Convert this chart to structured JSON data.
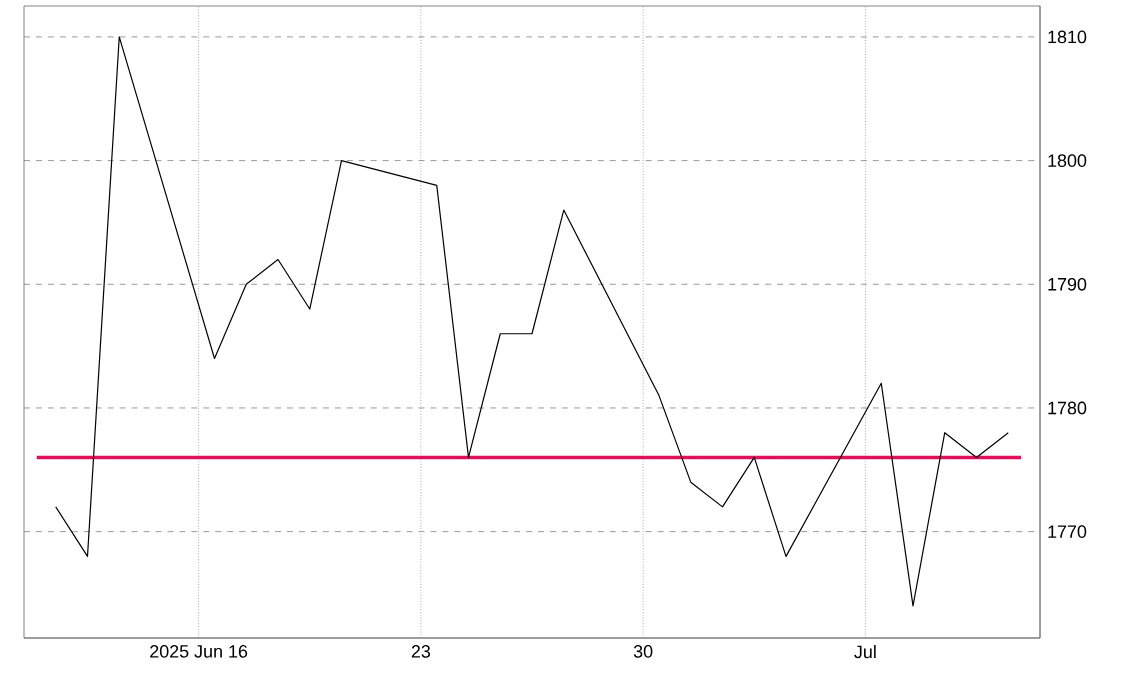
{
  "chart_data": {
    "type": "line",
    "x": [
      "2025-06-11T12:00",
      "2025-06-12T12:00",
      "2025-06-13T12:00",
      "2025-06-16T12:00",
      "2025-06-17T12:00",
      "2025-06-18T12:00",
      "2025-06-19T12:00",
      "2025-06-20T12:00",
      "2025-06-23T12:00",
      "2025-06-24T12:00",
      "2025-06-25T12:00",
      "2025-06-26T12:00",
      "2025-06-27T12:00",
      "2025-06-30T12:00",
      "2025-07-01T12:00",
      "2025-07-02T12:00",
      "2025-07-03T12:00",
      "2025-07-04T12:00",
      "2025-07-07T12:00",
      "2025-07-08T12:00",
      "2025-07-09T12:00",
      "2025-07-10T12:00",
      "2025-07-11T12:00"
    ],
    "series": [
      {
        "color": "#000000",
        "values": [
          1772,
          1768,
          1810,
          1784,
          1790,
          1792,
          1788,
          1800,
          1798,
          1776,
          1786,
          1786,
          1796,
          1781,
          1774,
          1772,
          1776,
          1768,
          1782,
          1764,
          1778,
          1776,
          1778
        ]
      }
    ],
    "xlim": [
      "2025-06-10T12:00",
      "2025-07-12T12:00"
    ],
    "xticks": [
      {
        "value": "2025-06-16",
        "label": "2025 Jun 16"
      },
      {
        "value": "2025-06-23",
        "label": "23"
      },
      {
        "value": "2025-06-30",
        "label": "30"
      },
      {
        "value": "2025-07-07",
        "label": "Jul"
      }
    ],
    "ylim": [
      1761.4,
      1812.5
    ],
    "yticks": [
      1770,
      1780,
      1790,
      1800,
      1810
    ],
    "ref_lines": [
      {
        "axis": "y",
        "value": 1776,
        "color": "#e0105a"
      }
    ],
    "grid": true,
    "marker": "none",
    "line_style": "solid"
  }
}
